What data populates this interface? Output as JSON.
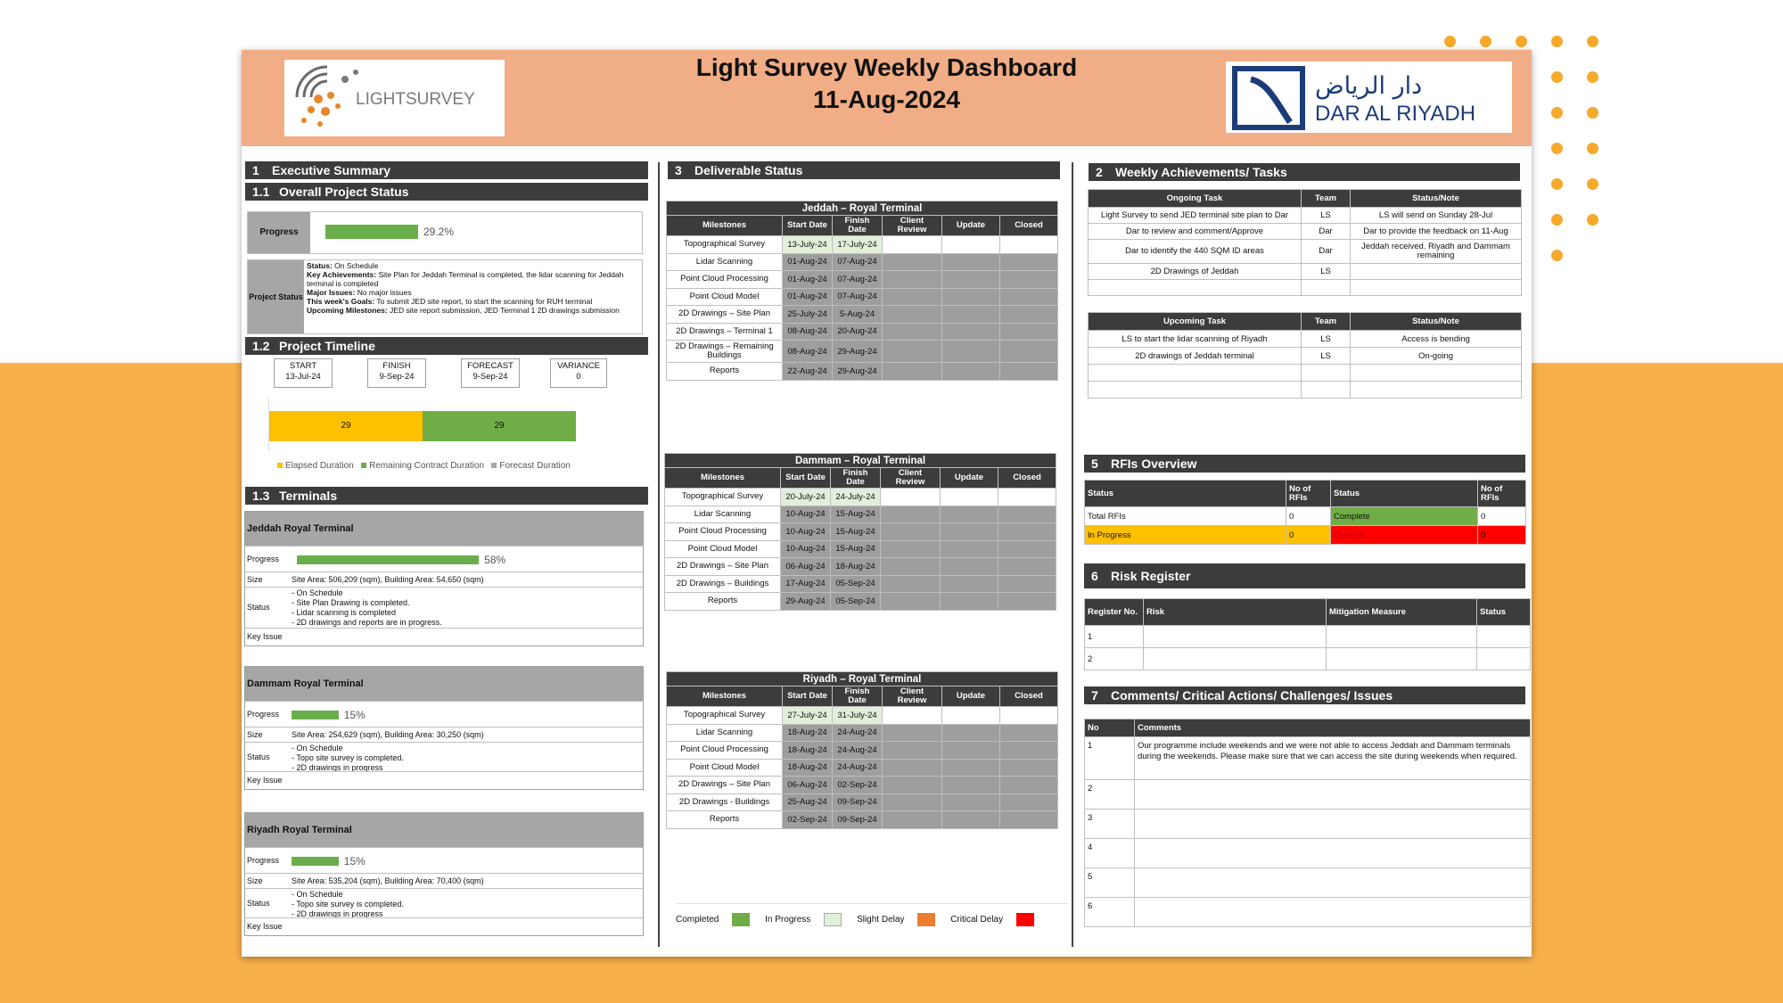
{
  "header": {
    "title": "Light Survey Weekly Dashboard",
    "date": "11-Aug-2024",
    "logo_left_text": "LIGHTSURVEY",
    "logo_right_arabic": "دار الرياض",
    "logo_right_text": "DAR AL RIYADH"
  },
  "colors": {
    "header_bg": "#f1ad85",
    "section_bg": "#3c3c3c",
    "progress": "#6aae4c",
    "elapsed": "#ffc000",
    "completed": "#70ad47",
    "in_progress": "#e2efda",
    "slight_delay": "#ed7d31",
    "critical_delay": "#ff0000",
    "backdrop": "#f8b04a"
  },
  "s1": {
    "num": "1",
    "title": "Executive Summary",
    "sub1_num": "1.1",
    "sub1_title": "Overall Project Status",
    "progress_label": "Progress",
    "progress_value": "29.2%",
    "progress_fraction": 0.292,
    "status_label": "Project Status",
    "status_lines": [
      {
        "k": "Status:",
        "v": " On Schedule"
      },
      {
        "k": "Key Achievements:",
        "v": " Site Plan for Jeddah Terminal is completed, the lidar scanning for Jeddah terminal is completed"
      },
      {
        "k": "Major Issues:",
        "v": " No major issues"
      },
      {
        "k": "This week's Goals:",
        "v": " To submit JED site report, to start the scanning for RUH terminal"
      },
      {
        "k": "Upcoming Milestones:",
        "v": " JED site report submission, JED Terminal 1 2D drawings submission"
      }
    ],
    "sub2_num": "1.2",
    "sub2_title": "Project Timeline",
    "timeline": [
      {
        "label": "START",
        "value": "13-Jul-24"
      },
      {
        "label": "FINISH",
        "value": "9-Sep-24"
      },
      {
        "label": "FORECAST",
        "value": "9-Sep-24"
      },
      {
        "label": "VARIANCE",
        "value": "0"
      }
    ],
    "duration_chart": {
      "elapsed": 29,
      "remaining": 29,
      "legend": [
        "Elapsed Duration",
        "Remaining Contract Duration",
        "Forecast Duration"
      ]
    },
    "sub3_num": "1.3",
    "sub3_title": "Terminals"
  },
  "terminals": [
    {
      "name": "Jeddah Royal  Terminal",
      "progress": "58%",
      "fraction": 0.58,
      "size": "Site Area: 506,209 (sqm), Building Area: 54,650 (sqm)",
      "status": [
        "- On Schedule",
        "- Site Plan Drawing is completed.",
        "- Lidar scanning is completed",
        "- 2D drawings  and reports are in progress."
      ],
      "key_issue": ""
    },
    {
      "name": "Dammam Royal  Terminal",
      "progress": "15%",
      "fraction": 0.15,
      "size": "Site Area: 254,629 (sqm), Building Area: 30,250 (sqm)",
      "status": [
        "- On Schedule",
        "- Topo site survey is completed.",
        "- 2D drawings in progress"
      ],
      "key_issue": ""
    },
    {
      "name": "Riyadh Royal  Terminal",
      "progress": "15%",
      "fraction": 0.15,
      "size": "Site Area: 535,204 (sqm), Building Area: 70,400 (sqm)",
      "status": [
        "- On Schedule",
        "- Topo site survey is completed.",
        "- 2D drawings in progress"
      ],
      "key_issue": ""
    }
  ],
  "terminal_labels": {
    "progress": "Progress",
    "size": "Size",
    "status": "Status",
    "key_issue": "Key Issue"
  },
  "s3": {
    "num": "3",
    "title": "Deliverable Status",
    "headers": [
      "Milestones",
      "Start Date",
      "Finish Date",
      "Client Review",
      "Update",
      "Closed"
    ],
    "tables": [
      {
        "title": "Jeddah – Royal Terminal",
        "rows": [
          [
            "Topographical Survey",
            "13-July-24",
            "17-July-24"
          ],
          [
            "Lidar Scanning",
            "01-Aug-24",
            "07-Aug-24"
          ],
          [
            "Point Cloud Processing",
            "01-Aug-24",
            "07-Aug-24"
          ],
          [
            "Point Cloud Model",
            "01-Aug-24",
            "07-Aug-24"
          ],
          [
            "2D Drawings – Site Plan",
            "25-July-24",
            "5-Aug-24"
          ],
          [
            "2D Drawings – Terminal 1",
            "08-Aug-24",
            "20-Aug-24"
          ],
          [
            "2D Drawings – Remaining Buildings",
            "08-Aug-24",
            "29-Aug-24"
          ],
          [
            "Reports",
            "22-Aug-24",
            "29-Aug-24"
          ]
        ]
      },
      {
        "title": "Dammam – Royal Terminal",
        "rows": [
          [
            "Topographical Survey",
            "20-July-24",
            "24-July-24"
          ],
          [
            "Lidar Scanning",
            "10-Aug-24",
            "15-Aug-24"
          ],
          [
            "Point Cloud Processing",
            "10-Aug-24",
            "15-Aug-24"
          ],
          [
            "Point Cloud Model",
            "10-Aug-24",
            "15-Aug-24"
          ],
          [
            "2D Drawings – Site Plan",
            "06-Aug-24",
            "18-Aug-24"
          ],
          [
            "2D Drawings – Buildings",
            "17-Aug-24",
            "05-Sep-24"
          ],
          [
            "Reports",
            "29-Aug-24",
            "05-Sep-24"
          ]
        ]
      },
      {
        "title": "Riyadh – Royal Terminal",
        "rows": [
          [
            "Topographical Survey",
            "27-July-24",
            "31-July-24"
          ],
          [
            "Lidar Scanning",
            "18-Aug-24",
            "24-Aug-24"
          ],
          [
            "Point Cloud Processing",
            "18-Aug-24",
            "24-Aug-24"
          ],
          [
            "Point Cloud Model",
            "18-Aug-24",
            "24-Aug-24"
          ],
          [
            "2D Drawings – Site Plan",
            "06-Aug-24",
            "02-Sep-24"
          ],
          [
            "2D Drawings - Buildings",
            "25-Aug-24",
            "09-Sep-24"
          ],
          [
            "Reports",
            "02-Sep-24",
            "09-Sep-24"
          ]
        ]
      }
    ],
    "legend": [
      "Completed",
      "In Progress",
      "Slight Delay",
      "Critical Delay"
    ]
  },
  "s2": {
    "num": "2",
    "title": "Weekly Achievements/ Tasks",
    "ongoing_headers": [
      "Ongoing Task",
      "Team",
      "Status/Note"
    ],
    "ongoing": [
      [
        "Light Survey to send JED terminal site plan to Dar",
        "LS",
        "LS will send on Sunday 28-Jul"
      ],
      [
        "Dar to review and comment/Approve",
        "Dar",
        "Dar to provide the feedback on 11-Aug"
      ],
      [
        "Dar to identify the 440 SQM ID areas",
        "Dar",
        "Jeddah received. Riyadh and Dammam remaining"
      ],
      [
        "2D Drawings of Jeddah",
        "LS",
        ""
      ],
      [
        "",
        "",
        ""
      ]
    ],
    "upcoming_headers": [
      "Upcoming Task",
      "Team",
      "Status/Note"
    ],
    "upcoming": [
      [
        "LS to start the lidar scanning of Riyadh",
        "LS",
        "Access is bending"
      ],
      [
        "2D drawings of Jeddah terminal",
        "LS",
        "On-going"
      ],
      [
        "",
        "",
        ""
      ],
      [
        "",
        "",
        ""
      ]
    ]
  },
  "s5": {
    "num": "5",
    "title": "RFIs Overview",
    "headers": [
      "Status",
      "No of RFIs",
      "Status",
      "No of RFIs"
    ],
    "rows": [
      [
        "Total RFIs",
        "0",
        "Complete",
        "0"
      ],
      [
        "In Progress",
        "0",
        "Overdue",
        "0"
      ]
    ]
  },
  "s6": {
    "num": "6",
    "title": "Risk Register",
    "headers": [
      "Register No.",
      "Risk",
      "Mitigation Measure",
      "Status"
    ],
    "rows": [
      [
        "1",
        "",
        "",
        ""
      ],
      [
        "2",
        "",
        "",
        ""
      ]
    ]
  },
  "s7": {
    "num": "7",
    "title": "Comments/ Critical Actions/ Challenges/ Issues",
    "headers": [
      "No",
      "Comments"
    ],
    "rows": [
      [
        "1",
        "Our programme include weekends and we were not able to access Jeddah and Dammam terminals during the weekends. Please make sure that we can access the site during weekends when required."
      ],
      [
        "2",
        ""
      ],
      [
        "3",
        ""
      ],
      [
        "4",
        ""
      ],
      [
        "5",
        ""
      ],
      [
        "6",
        ""
      ]
    ]
  }
}
